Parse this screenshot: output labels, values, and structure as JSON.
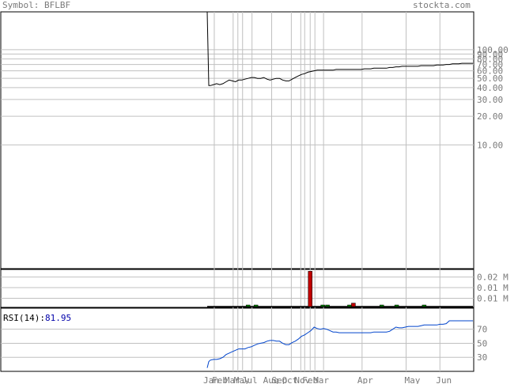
{
  "header": {
    "symbol_label": "Symbol:",
    "symbol": "BFLBF",
    "brand": "stockta.com"
  },
  "colors": {
    "grid": "#c0c0c0",
    "axis_text": "#7a7a7a",
    "price_line": "#000000",
    "volume_up": "#008000",
    "volume_down": "#c00000",
    "rsi_line": "#0044cc",
    "rsi_label": "#000000",
    "rsi_value": "#0000aa"
  },
  "chart_data": [
    {
      "type": "line",
      "name": "price",
      "scale": "log",
      "ylim": [
        0.5,
        250
      ],
      "y_ticks": [
        {
          "v": 100,
          "label": "100.00"
        },
        {
          "v": 90,
          "label": "90.00"
        },
        {
          "v": 80,
          "label": "80.00"
        },
        {
          "v": 70,
          "label": "70.00"
        },
        {
          "v": 60,
          "label": "60.00"
        },
        {
          "v": 50,
          "label": "50.00"
        },
        {
          "v": 40,
          "label": "40.00"
        },
        {
          "v": 30,
          "label": "30.00"
        },
        {
          "v": 20,
          "label": "20.00"
        },
        {
          "v": 10,
          "label": "10.00"
        }
      ],
      "spike": {
        "x": 2,
        "y": 250
      },
      "x": [
        0,
        2,
        4,
        8,
        12,
        16,
        20,
        24,
        28,
        32,
        36,
        40,
        44,
        48,
        52,
        56,
        60,
        64,
        68,
        72,
        76,
        80,
        84,
        88,
        92,
        96,
        100,
        104,
        108,
        112,
        116,
        120,
        124,
        128,
        132,
        136,
        140,
        144,
        148,
        152,
        156,
        160,
        164,
        168,
        172,
        176,
        180,
        184,
        188,
        192,
        196,
        200,
        204,
        208,
        212,
        216,
        220,
        224,
        228,
        232,
        236,
        240,
        244,
        248,
        252,
        256,
        260,
        264,
        268,
        272,
        276,
        280,
        284,
        288,
        292,
        296,
        300,
        304,
        308,
        312,
        316,
        320,
        324,
        328,
        332,
        336,
        338
      ],
      "values": [
        250,
        42,
        42,
        43,
        44,
        43,
        44,
        46,
        48,
        47,
        46,
        48,
        48,
        49,
        50,
        51,
        51,
        50,
        50,
        51,
        49,
        48,
        49,
        50,
        50,
        48,
        47,
        47,
        49,
        51,
        53,
        55,
        56,
        58,
        59,
        60,
        61,
        61,
        61,
        61,
        61,
        61,
        62,
        62,
        62,
        62,
        62,
        62,
        62,
        62,
        62,
        63,
        63,
        63,
        64,
        64,
        64,
        64,
        64,
        65,
        65,
        66,
        66,
        67,
        67,
        67,
        67,
        67,
        67,
        68,
        68,
        68,
        68,
        68,
        69,
        69,
        69,
        70,
        70,
        71,
        71,
        71,
        72,
        72,
        72,
        72,
        72
      ]
    },
    {
      "type": "bar",
      "name": "volume",
      "ylim": [
        0,
        0.025
      ],
      "y_ticks": [
        {
          "v": 0.02,
          "label": "0.02 M"
        },
        {
          "v": 0.013,
          "label": "0.01 M"
        },
        {
          "v": 0.006,
          "label": "0.01 M"
        }
      ],
      "bars": [
        {
          "x": 52,
          "v": 0.0008,
          "dir": "up"
        },
        {
          "x": 62,
          "v": 0.0005,
          "dir": "up"
        },
        {
          "x": 131,
          "v": 0.0238,
          "dir": "down"
        },
        {
          "x": 147,
          "v": 0.0012,
          "dir": "up"
        },
        {
          "x": 153,
          "v": 0.0005,
          "dir": "up"
        },
        {
          "x": 181,
          "v": 0.001,
          "dir": "up"
        },
        {
          "x": 186,
          "v": 0.0028,
          "dir": "down"
        },
        {
          "x": 222,
          "v": 0.0008,
          "dir": "up"
        },
        {
          "x": 241,
          "v": 0.0004,
          "dir": "up"
        },
        {
          "x": 276,
          "v": 0.0006,
          "dir": "up"
        }
      ]
    },
    {
      "type": "line",
      "name": "RSI",
      "ylim": [
        10,
        100
      ],
      "y_ticks": [
        {
          "v": 70,
          "label": "70"
        },
        {
          "v": 50,
          "label": "50"
        },
        {
          "v": 30,
          "label": "30"
        }
      ],
      "label": "RSI(14):",
      "value": "81.95",
      "x": [
        0,
        2,
        4,
        8,
        12,
        16,
        20,
        24,
        28,
        32,
        36,
        40,
        44,
        48,
        52,
        56,
        60,
        64,
        68,
        72,
        76,
        80,
        84,
        88,
        92,
        96,
        100,
        104,
        108,
        112,
        116,
        120,
        124,
        128,
        132,
        136,
        140,
        144,
        148,
        152,
        156,
        160,
        164,
        168,
        172,
        176,
        180,
        184,
        188,
        192,
        196,
        200,
        204,
        208,
        212,
        216,
        220,
        224,
        228,
        232,
        236,
        240,
        244,
        248,
        252,
        256,
        260,
        264,
        268,
        272,
        276,
        280,
        284,
        288,
        292,
        296,
        300,
        304,
        308,
        312,
        316,
        320,
        324,
        328,
        332,
        336,
        338
      ],
      "values": [
        15,
        24,
        26,
        27,
        27,
        28,
        30,
        34,
        36,
        38,
        40,
        42,
        42,
        42,
        44,
        45,
        47,
        49,
        50,
        51,
        53,
        54,
        54,
        53,
        53,
        50,
        48,
        48,
        51,
        53,
        56,
        60,
        62,
        65,
        68,
        73,
        71,
        70,
        71,
        70,
        68,
        66,
        66,
        65,
        65,
        65,
        65,
        65,
        65,
        65,
        65,
        65,
        65,
        65,
        66,
        66,
        66,
        66,
        66,
        67,
        70,
        73,
        72,
        72,
        73,
        74,
        74,
        74,
        74,
        75,
        76,
        76,
        76,
        76,
        76,
        77,
        77,
        78,
        82,
        82,
        82,
        82,
        82,
        82,
        82,
        82,
        82
      ]
    }
  ],
  "x_axis": {
    "range": [
      0,
      338
    ],
    "gridlines": [
      9,
      33,
      39,
      45,
      57,
      82,
      107,
      119,
      124,
      131,
      137,
      148,
      197,
      253,
      296
    ],
    "labels": [
      {
        "x": -5,
        "text": "Jan"
      },
      {
        "x": 6,
        "text": "Feb"
      },
      {
        "x": 22,
        "text": "Mar"
      },
      {
        "x": 34,
        "text": "May"
      },
      {
        "x": 44,
        "text": "Jul"
      },
      {
        "x": 71,
        "text": "Aug"
      },
      {
        "x": 82,
        "text": "Sep"
      },
      {
        "x": 95,
        "text": "Oct"
      },
      {
        "x": 111,
        "text": "Nov"
      },
      {
        "x": 121,
        "text": "Feb"
      },
      {
        "x": 135,
        "text": "Mar"
      },
      {
        "x": 191,
        "text": "Apr"
      },
      {
        "x": 251,
        "text": "May"
      },
      {
        "x": 291,
        "text": "Jun"
      }
    ]
  }
}
